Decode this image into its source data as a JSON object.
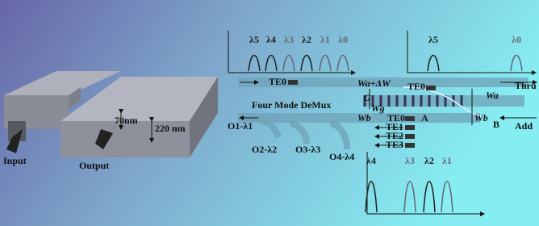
{
  "device": {
    "input_label": "Input",
    "output_label": "Output",
    "etch_depth_label": "70nm",
    "height_label": "220 nm"
  },
  "spectra": {
    "drop": [
      "λ5",
      "λ4",
      "λ3",
      "λ2",
      "λ1",
      "λ0"
    ],
    "thru": [
      "λ5",
      "λ0"
    ],
    "demux": [
      "λ4",
      "λ3",
      "λ2",
      "λ1"
    ]
  },
  "circuit": {
    "mode_in": "TE0",
    "width_top": "Wa+ΔW",
    "gap": "G",
    "mode_mid": "TE0",
    "width_grating": "Wg",
    "width_right": "Wa",
    "thru": "Thru",
    "demux_label": "Four Mode DeMux",
    "width_bottom": "Wb",
    "width_bottom_right": "Wb",
    "mode_bottom": "TE0",
    "point_a": "A",
    "point_b": "B",
    "add": "Add",
    "modes": [
      "TE1",
      "TE2",
      "TE3"
    ],
    "outputs": [
      "O1-λ1",
      "O2-λ2",
      "O3-λ3",
      "O4-λ4"
    ]
  }
}
